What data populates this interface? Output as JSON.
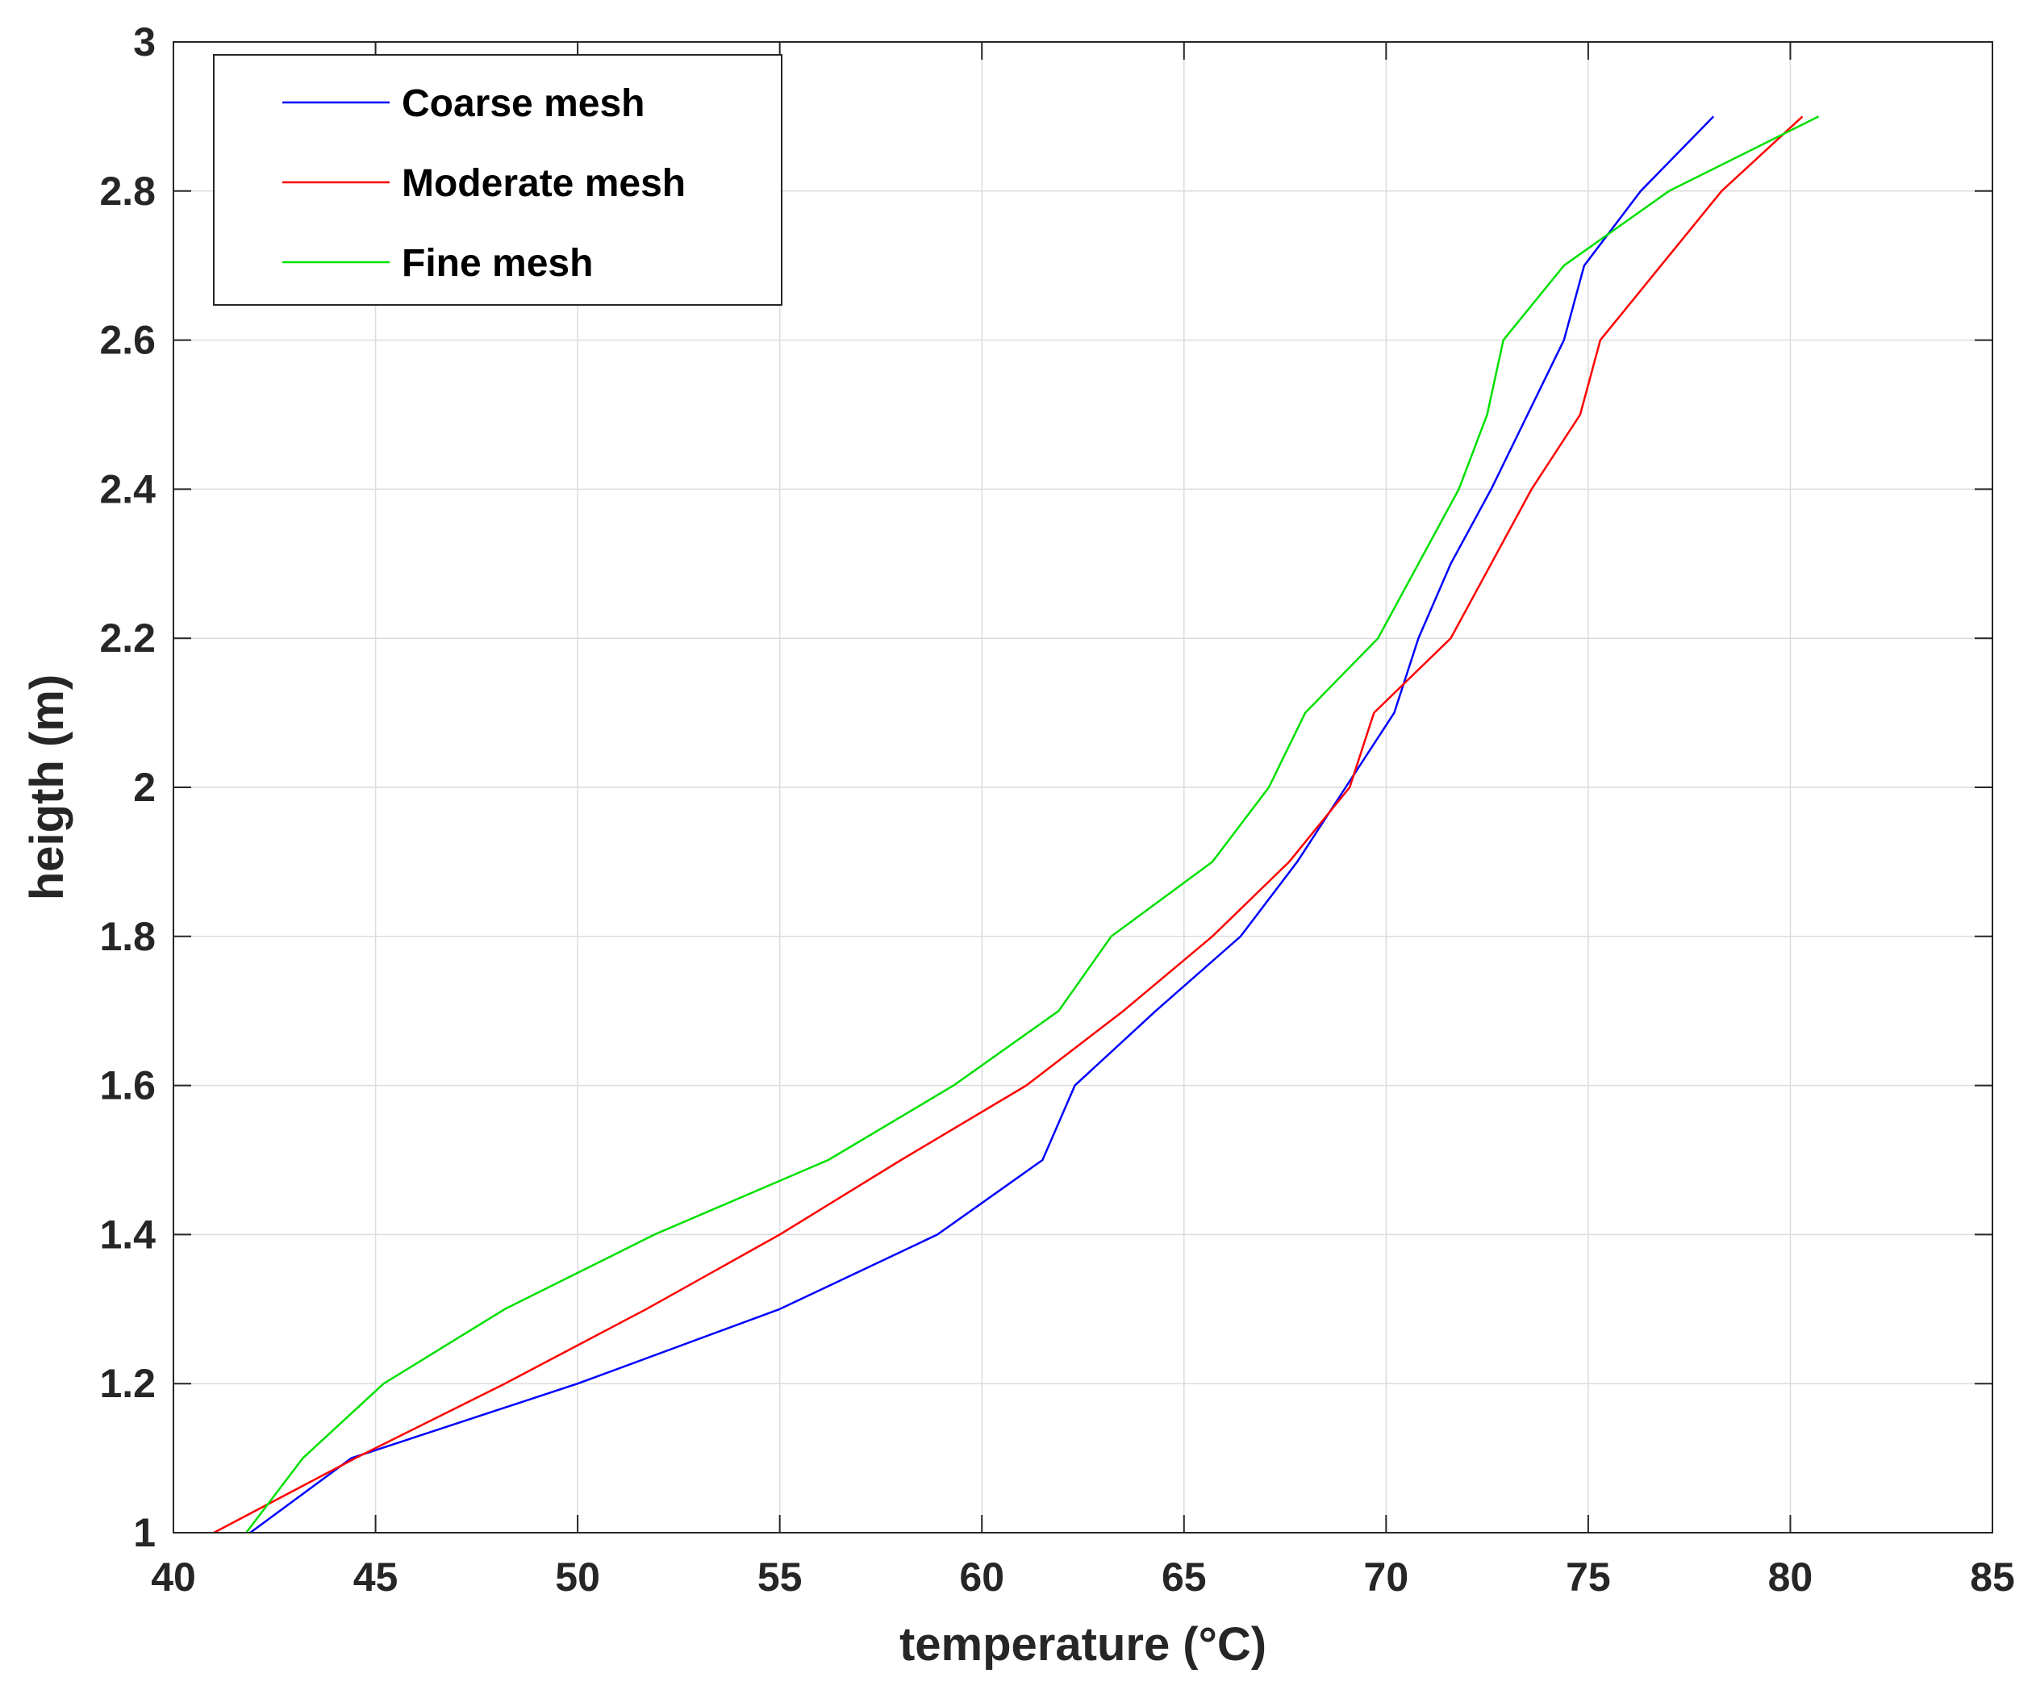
{
  "chart_data": {
    "type": "line",
    "title": "",
    "xlabel": "temperature (°C)",
    "ylabel": "heigth (m)",
    "xlim": [
      40,
      85
    ],
    "ylim": [
      1,
      3
    ],
    "xticks": [
      "40",
      "45",
      "50",
      "55",
      "60",
      "65",
      "70",
      "75",
      "80",
      "85"
    ],
    "yticks": [
      "1",
      "1.2",
      "1.4",
      "1.6",
      "1.8",
      "2",
      "2.2",
      "2.4",
      "2.6",
      "2.8",
      "3"
    ],
    "grid": true,
    "legend_position": "top-left",
    "series": [
      {
        "name": "Coarse mesh",
        "color": "#0000ff",
        "points": [
          [
            41.9,
            1.0
          ],
          [
            44.4,
            1.1
          ],
          [
            50.0,
            1.2
          ],
          [
            55.0,
            1.3
          ],
          [
            58.9,
            1.4
          ],
          [
            61.5,
            1.5
          ],
          [
            62.3,
            1.6
          ],
          [
            64.3,
            1.7
          ],
          [
            66.4,
            1.8
          ],
          [
            67.8,
            1.9
          ],
          [
            69.0,
            2.0
          ],
          [
            70.2,
            2.1
          ],
          [
            70.8,
            2.2
          ],
          [
            71.6,
            2.3
          ],
          [
            72.6,
            2.4
          ],
          [
            73.5,
            2.5
          ],
          [
            74.4,
            2.6
          ],
          [
            74.9,
            2.7
          ],
          [
            76.3,
            2.8
          ],
          [
            78.1,
            2.9
          ]
        ]
      },
      {
        "name": "Moderate mesh",
        "color": "#ff0000",
        "points": [
          [
            41.0,
            1.0
          ],
          [
            44.5,
            1.1
          ],
          [
            48.2,
            1.2
          ],
          [
            51.7,
            1.3
          ],
          [
            55.0,
            1.4
          ],
          [
            58.0,
            1.5
          ],
          [
            61.1,
            1.6
          ],
          [
            63.5,
            1.7
          ],
          [
            65.7,
            1.8
          ],
          [
            67.6,
            1.9
          ],
          [
            69.1,
            2.0
          ],
          [
            69.7,
            2.1
          ],
          [
            71.6,
            2.2
          ],
          [
            72.6,
            2.3
          ],
          [
            73.6,
            2.4
          ],
          [
            74.8,
            2.5
          ],
          [
            75.3,
            2.6
          ],
          [
            76.8,
            2.7
          ],
          [
            78.3,
            2.8
          ],
          [
            80.3,
            2.9
          ]
        ]
      },
      {
        "name": "Fine mesh",
        "color": "#00e000",
        "points": [
          [
            41.8,
            1.0
          ],
          [
            43.2,
            1.1
          ],
          [
            45.2,
            1.2
          ],
          [
            48.2,
            1.3
          ],
          [
            51.9,
            1.4
          ],
          [
            56.2,
            1.5
          ],
          [
            59.3,
            1.6
          ],
          [
            61.9,
            1.7
          ],
          [
            63.2,
            1.8
          ],
          [
            65.7,
            1.9
          ],
          [
            67.1,
            2.0
          ],
          [
            68.0,
            2.1
          ],
          [
            69.8,
            2.2
          ],
          [
            70.8,
            2.3
          ],
          [
            71.8,
            2.4
          ],
          [
            72.5,
            2.5
          ],
          [
            72.9,
            2.6
          ],
          [
            74.4,
            2.7
          ],
          [
            77.0,
            2.8
          ],
          [
            80.7,
            2.9
          ]
        ]
      }
    ]
  }
}
